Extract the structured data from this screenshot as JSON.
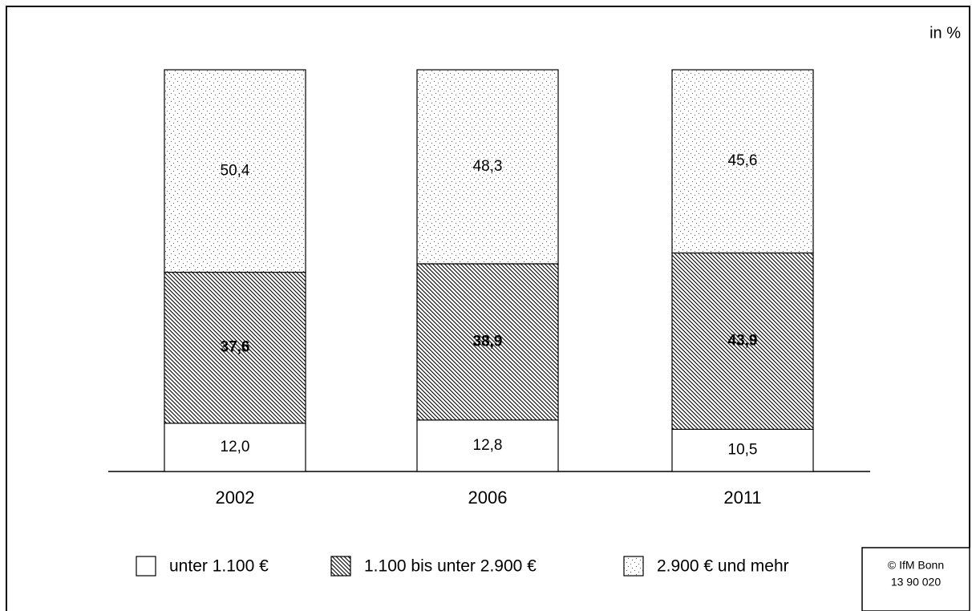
{
  "chart_data": {
    "type": "stacked-bar",
    "unit_label": "in %",
    "categories": [
      "2002",
      "2006",
      "2011"
    ],
    "series": [
      {
        "name": "unter 1.100 €",
        "values": [
          12.0,
          12.8,
          10.5
        ],
        "value_labels": [
          "12,0",
          "12,8",
          "10,5"
        ]
      },
      {
        "name": "1.100 bis unter 2.900 €",
        "values": [
          37.6,
          38.9,
          43.9
        ],
        "value_labels": [
          "37,6",
          "38,9",
          "43,9"
        ]
      },
      {
        "name": "2.900 € und mehr",
        "values": [
          50.4,
          48.3,
          45.6
        ],
        "value_labels": [
          "50,4",
          "48,3",
          "45,6"
        ]
      }
    ],
    "ylim": [
      0,
      100
    ],
    "source": [
      "© IfM Bonn",
      "13 90 020"
    ]
  }
}
